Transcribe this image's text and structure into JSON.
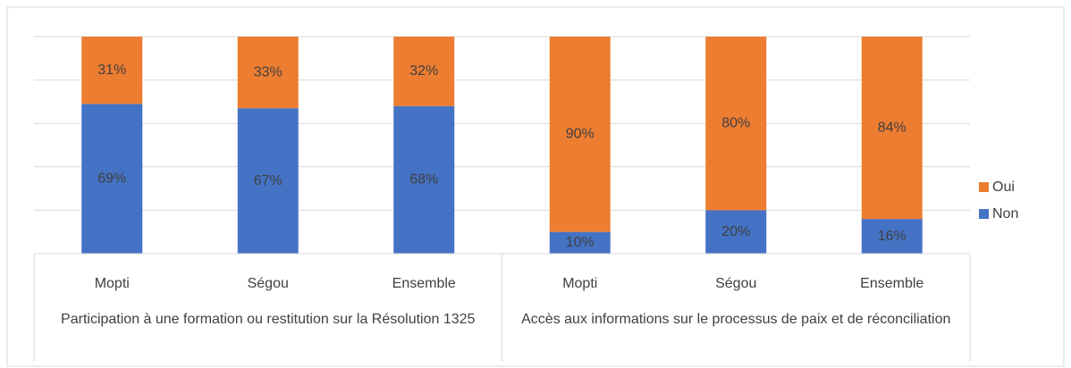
{
  "chart_data": {
    "type": "stacked_bar",
    "categories": [
      "Mopti",
      "Ségou",
      "Ensemble",
      "Mopti",
      "Ségou",
      "Ensemble"
    ],
    "groups": [
      "Participation à une formation ou restitution sur la Résolution 1325",
      "Accès aux informations sur le processus de paix et de réconciliation"
    ],
    "series": [
      {
        "name": "Non",
        "color": "#4472c4",
        "values": [
          69,
          67,
          68,
          10,
          20,
          16
        ],
        "value_labels": [
          "69%",
          "67%",
          "68%",
          "10%",
          "20%",
          "16%"
        ]
      },
      {
        "name": "Oui",
        "color": "#ed7d31",
        "values": [
          31,
          33,
          32,
          90,
          80,
          84
        ],
        "value_labels": [
          "31%",
          "33%",
          "32%",
          "90%",
          "80%",
          "84%"
        ]
      }
    ],
    "ylim": [
      0,
      100
    ],
    "yticks": [
      0,
      20,
      40,
      60,
      80,
      100
    ],
    "grid": true,
    "legend": "right"
  }
}
